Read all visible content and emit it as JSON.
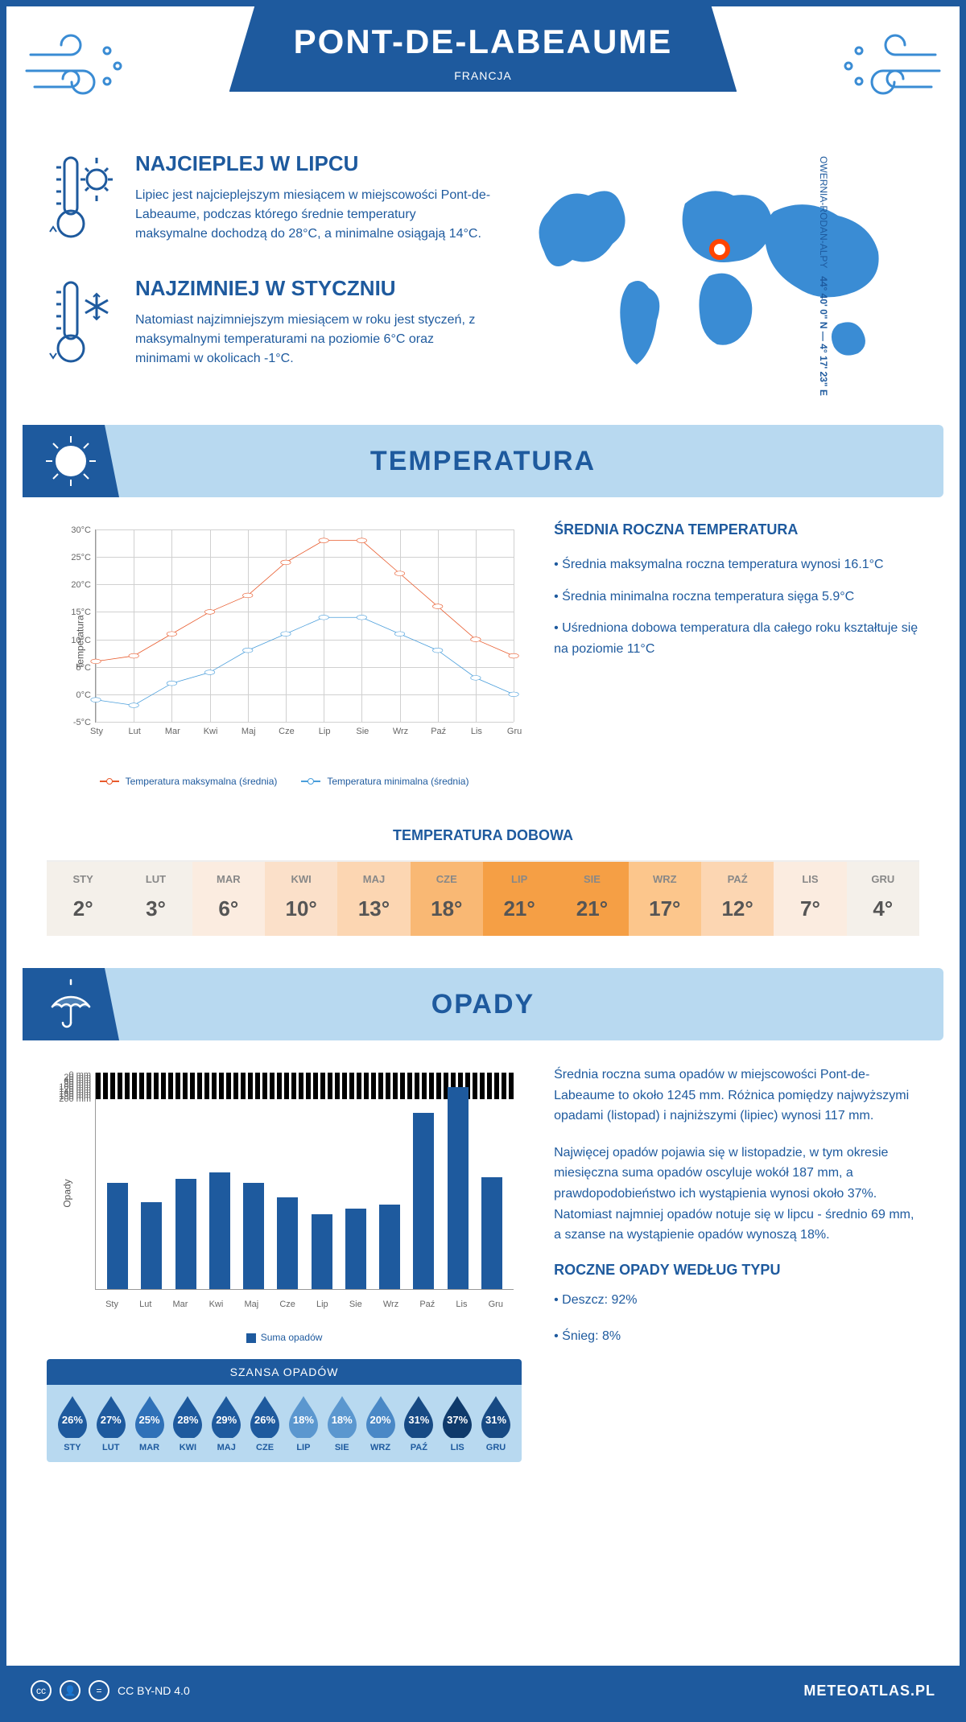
{
  "header": {
    "title": "PONT-DE-LABEAUME",
    "country": "FRANCJA"
  },
  "facts": {
    "warm": {
      "title": "NAJCIEPLEJ W LIPCU",
      "text": "Lipiec jest najcieplejszym miesiącem w miejscowości Pont-de-Labeaume, podczas którego średnie temperatury maksymalne dochodzą do 28°C, a minimalne osiągają 14°C."
    },
    "cold": {
      "title": "NAJZIMNIEJ W STYCZNIU",
      "text": "Natomiast najzimniejszym miesiącem w roku jest styczeń, z maksymalnymi temperaturami na poziomie 6°C oraz minimami w okolicach -1°C."
    }
  },
  "location": {
    "coords": "44° 40' 0\" N — 4° 17' 23\" E",
    "region": "OWERNIA-RODAN-ALPY",
    "marker_color": "#ff4500"
  },
  "temperature": {
    "section_title": "TEMPERATURA",
    "chart": {
      "type": "line",
      "months": [
        "Sty",
        "Lut",
        "Mar",
        "Kwi",
        "Maj",
        "Cze",
        "Lip",
        "Sie",
        "Wrz",
        "Paź",
        "Lis",
        "Gru"
      ],
      "max_series": [
        6,
        7,
        11,
        15,
        18,
        24,
        28,
        28,
        22,
        16,
        10,
        7
      ],
      "min_series": [
        -1,
        -2,
        2,
        4,
        8,
        11,
        14,
        14,
        11,
        8,
        3,
        0
      ],
      "max_color": "#e85a2c",
      "min_color": "#4a9edb",
      "ylim": [
        -5,
        30
      ],
      "ytick_step": 5,
      "ylabel": "Temperatura",
      "legend_max": "Temperatura maksymalna (średnia)",
      "legend_min": "Temperatura minimalna (średnia)",
      "grid_color": "#d0d0d0"
    },
    "info": {
      "title": "ŚREDNIA ROCZNA TEMPERATURA",
      "bullet1": "• Średnia maksymalna roczna temperatura wynosi 16.1°C",
      "bullet2": "• Średnia minimalna roczna temperatura sięga 5.9°C",
      "bullet3": "• Uśredniona dobowa temperatura dla całego roku kształtuje się na poziomie 11°C"
    },
    "daily": {
      "title": "TEMPERATURA DOBOWA",
      "months": [
        "STY",
        "LUT",
        "MAR",
        "KWI",
        "MAJ",
        "CZE",
        "LIP",
        "SIE",
        "WRZ",
        "PAŹ",
        "LIS",
        "GRU"
      ],
      "values": [
        "2°",
        "3°",
        "6°",
        "10°",
        "13°",
        "18°",
        "21°",
        "21°",
        "17°",
        "12°",
        "7°",
        "4°"
      ],
      "cell_colors": [
        "#f4f0ea",
        "#f4f0ea",
        "#fbece0",
        "#fbe0c9",
        "#fcd6b2",
        "#f9b874",
        "#f59f45",
        "#f59f45",
        "#fcc68c",
        "#fcd6b2",
        "#fbece0",
        "#f4f0ea"
      ]
    }
  },
  "precipitation": {
    "section_title": "OPADY",
    "chart": {
      "type": "bar",
      "months": [
        "Sty",
        "Lut",
        "Mar",
        "Kwi",
        "Maj",
        "Cze",
        "Lip",
        "Sie",
        "Wrz",
        "Paź",
        "Lis",
        "Gru"
      ],
      "values": [
        98,
        80,
        102,
        108,
        98,
        85,
        69,
        74,
        78,
        163,
        187,
        103
      ],
      "bar_color": "#1e5a9e",
      "ylim": [
        0,
        200
      ],
      "ytick_step": 20,
      "ylabel": "Opady",
      "legend": "Suma opadów",
      "grid_color": "#d0d0d0"
    },
    "info": {
      "para1": "Średnia roczna suma opadów w miejscowości Pont-de-Labeaume to około 1245 mm. Różnica pomiędzy najwyższymi opadami (listopad) i najniższymi (lipiec) wynosi 117 mm.",
      "para2": "Najwięcej opadów pojawia się w listopadzie, w tym okresie miesięczna suma opadów oscyluje wokół 187 mm, a prawdopodobieństwo ich wystąpienia wynosi około 37%. Natomiast najmniej opadów notuje się w lipcu - średnio 69 mm, a szanse na wystąpienie opadów wynoszą 18%."
    },
    "chance": {
      "title": "SZANSA OPADÓW",
      "months": [
        "STY",
        "LUT",
        "MAR",
        "KWI",
        "MAJ",
        "CZE",
        "LIP",
        "SIE",
        "WRZ",
        "PAŹ",
        "LIS",
        "GRU"
      ],
      "values": [
        "26%",
        "27%",
        "25%",
        "28%",
        "29%",
        "26%",
        "18%",
        "18%",
        "20%",
        "31%",
        "37%",
        "31%"
      ],
      "drop_colors": [
        "#1e5a9e",
        "#1e5a9e",
        "#2f71b8",
        "#1e5a9e",
        "#1e5a9e",
        "#1e5a9e",
        "#5b97cf",
        "#5b97cf",
        "#4a88c6",
        "#174a84",
        "#0f3a6b",
        "#174a84"
      ]
    },
    "by_type": {
      "title": "ROCZNE OPADY WEDŁUG TYPU",
      "rain": "• Deszcz: 92%",
      "snow": "• Śnieg: 8%"
    }
  },
  "footer": {
    "license": "CC BY-ND 4.0",
    "site": "METEOATLAS.PL"
  },
  "colors": {
    "primary": "#1e5a9e",
    "light_blue": "#b8d9f0",
    "map_blue": "#3a8cd4"
  }
}
